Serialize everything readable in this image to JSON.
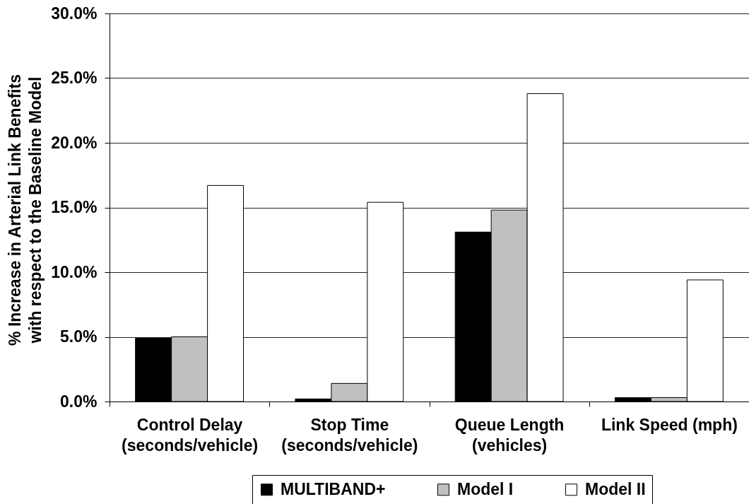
{
  "chart_data": {
    "type": "bar",
    "ylabel": "% Increase in Arterial Link Benefits\nwith respect to the Baseline Model",
    "categories": [
      "Control Delay\n(seconds/vehicle)",
      "Stop Time\n(seconds/vehicle)",
      "Queue Length\n(vehicles)",
      "Link Speed (mph)"
    ],
    "series": [
      {
        "name": "MULTIBAND+",
        "color": "#000000",
        "values": [
          4.9,
          0.2,
          13.1,
          0.3
        ]
      },
      {
        "name": "Model I",
        "color": "#c0c0c0",
        "values": [
          5.0,
          1.4,
          14.8,
          0.3
        ]
      },
      {
        "name": "Model II",
        "color": "#ffffff",
        "values": [
          16.7,
          15.4,
          23.8,
          9.4
        ]
      }
    ],
    "ylim": [
      0,
      30
    ],
    "yticks": [
      {
        "value": 0,
        "label": "0.0%"
      },
      {
        "value": 5,
        "label": "5.0%"
      },
      {
        "value": 10,
        "label": "10.0%"
      },
      {
        "value": 15,
        "label": "15.0%"
      },
      {
        "value": 20,
        "label": "20.0%"
      },
      {
        "value": 25,
        "label": "25.0%"
      },
      {
        "value": 30,
        "label": "30.0%"
      }
    ],
    "grid": "y",
    "legend": "bottom"
  }
}
